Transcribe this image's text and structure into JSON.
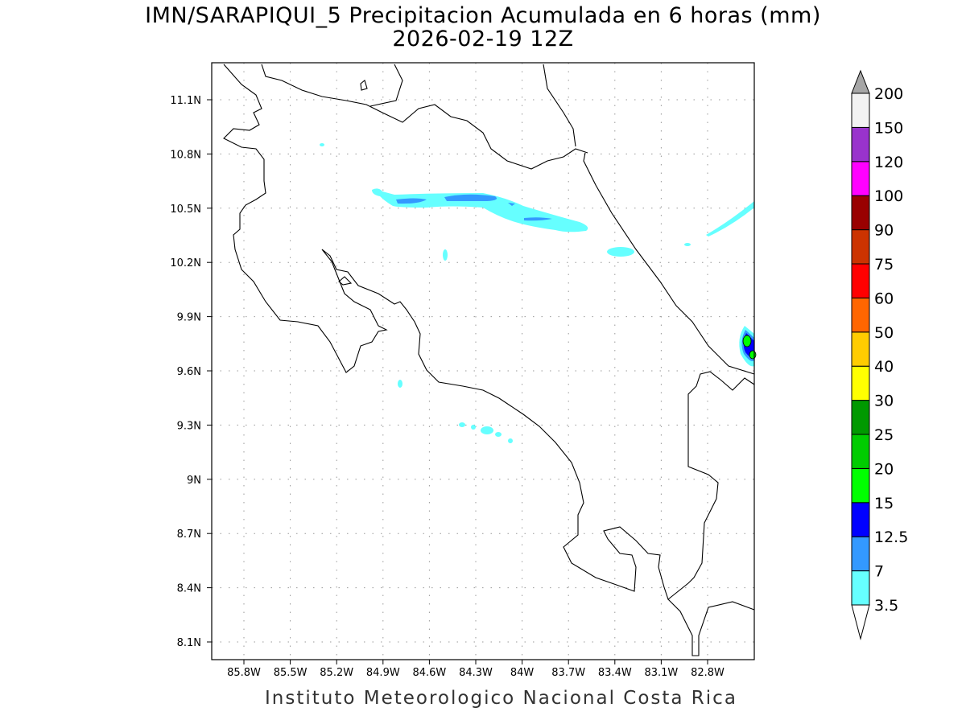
{
  "title": "IMN/SARAPIQUI_5 Precipitacion Acumulada en 6 horas (mm)",
  "subtitle": "2026-02-19 12Z",
  "footer": "Instituto Meteorologico Nacional Costa Rica",
  "map": {
    "lon_labels": [
      "85.8W",
      "85.5W",
      "85.2W",
      "84.9W",
      "84.6W",
      "84.3W",
      "84W",
      "83.7W",
      "83.4W",
      "83.1W",
      "82.8W"
    ],
    "lat_labels": [
      "11.1N",
      "10.8N",
      "10.5N",
      "10.2N",
      "9.9N",
      "9.6N",
      "9.3N",
      "9N",
      "8.7N",
      "8.4N",
      "8.1N"
    ]
  },
  "colorbar": {
    "labels": [
      "3.5",
      "7",
      "12.5",
      "15",
      "20",
      "25",
      "30",
      "40",
      "50",
      "60",
      "75",
      "90",
      "100",
      "120",
      "150",
      "200"
    ],
    "colors": [
      "#66ffff",
      "#3399ff",
      "#0000ff",
      "#00ff00",
      "#00cc00",
      "#009900",
      "#ffff00",
      "#ffcc00",
      "#ff6600",
      "#ff0000",
      "#cc3300",
      "#990000",
      "#ff00ff",
      "#9933cc",
      "#f2f2f2"
    ],
    "over_color": "#a6a6a6",
    "under_color": "#ffffff"
  }
}
